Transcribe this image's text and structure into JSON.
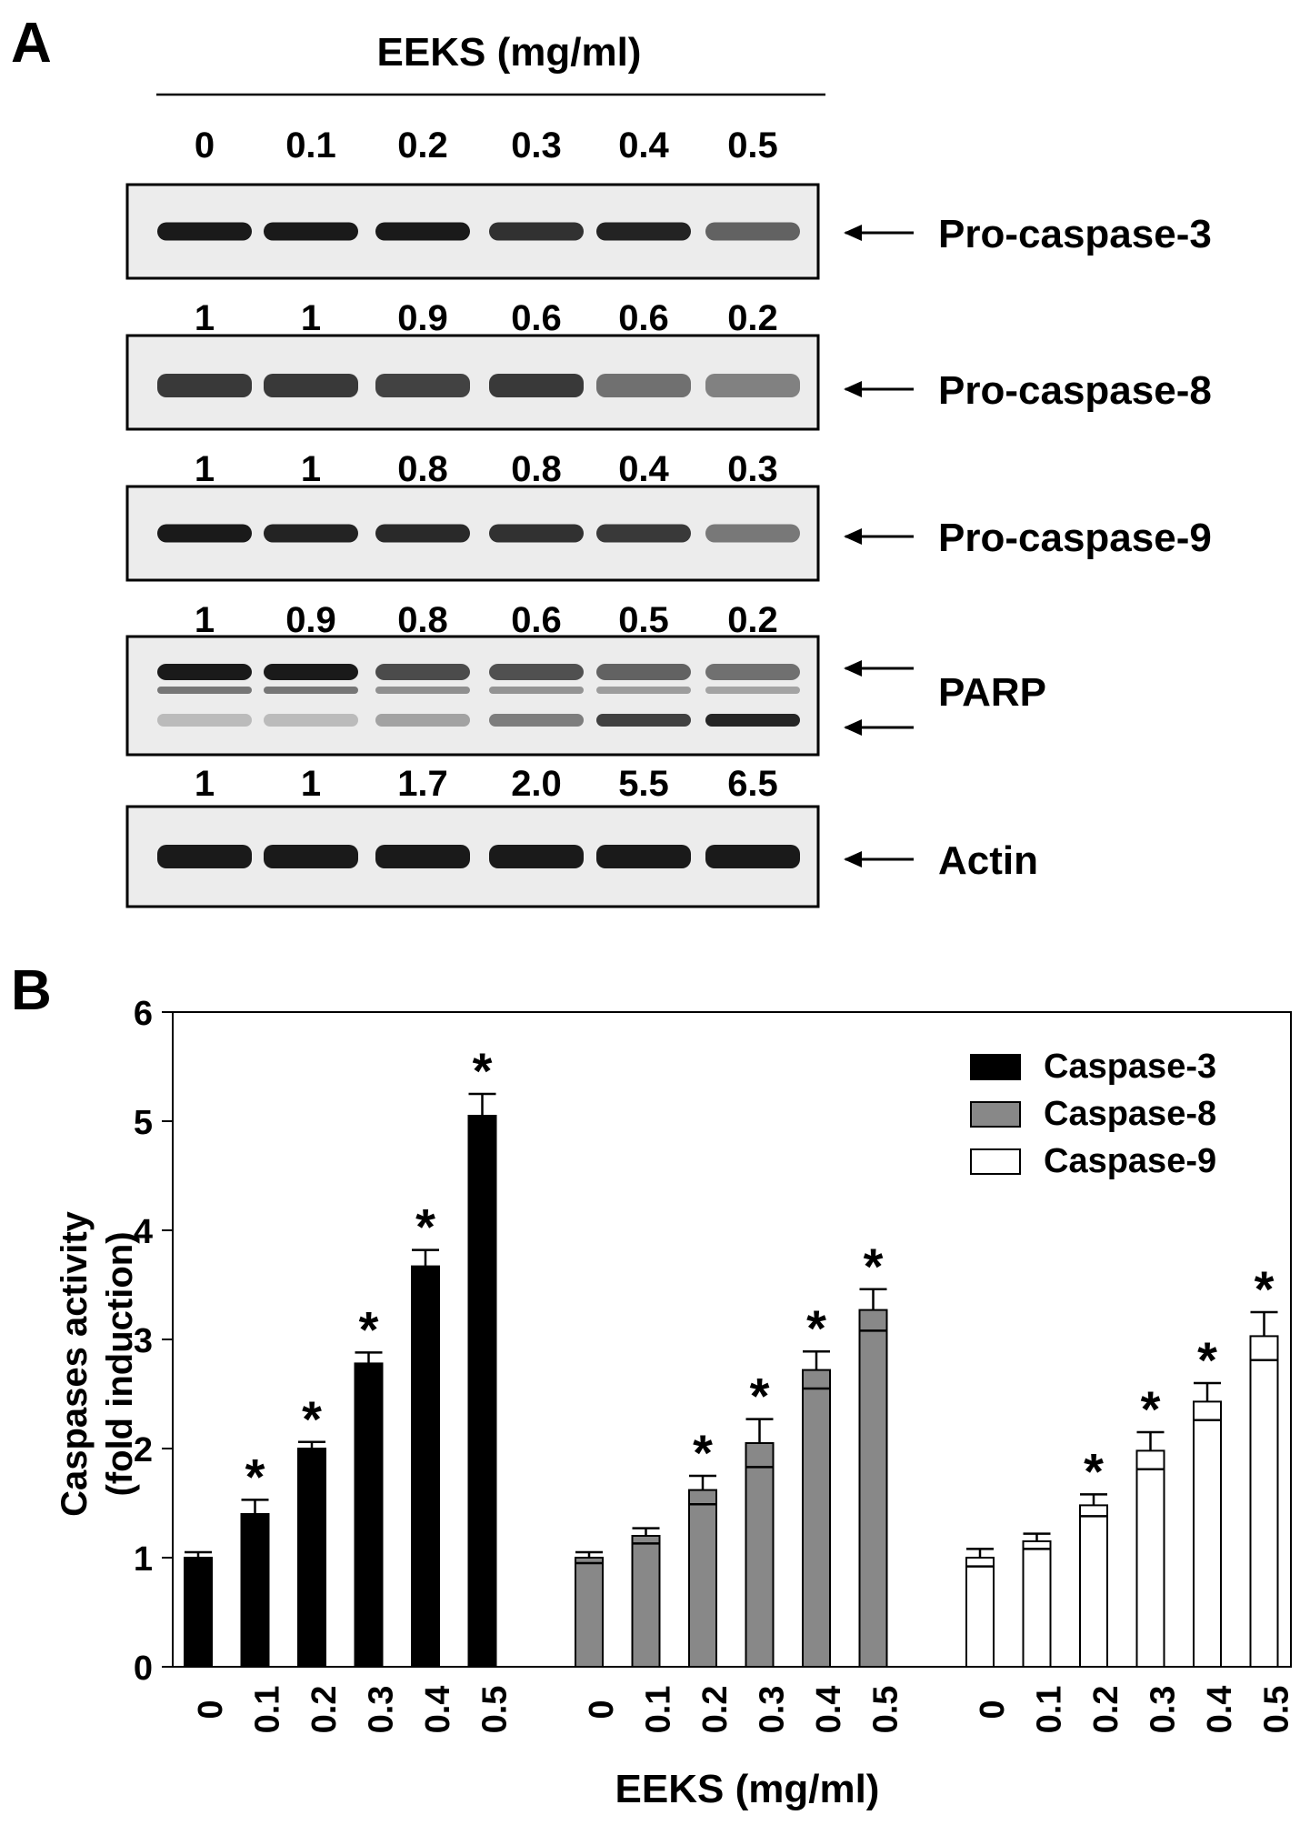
{
  "panel_a": {
    "label": "A",
    "header": "EEKS (mg/ml)",
    "doses": [
      "0",
      "0.1",
      "0.2",
      "0.3",
      "0.4",
      "0.5"
    ],
    "blots": [
      {
        "name": "Pro-caspase-3",
        "label": "Pro-caspase-3",
        "intensity": [
          1,
          1,
          1,
          0.85,
          0.95,
          0.55
        ],
        "quant": [
          "1",
          "1",
          "0.9",
          "0.6",
          "0.6",
          "0.2"
        ]
      },
      {
        "name": "Pro-caspase-8",
        "label": "Pro-caspase-8",
        "intensity": [
          0.8,
          0.8,
          0.75,
          0.8,
          0.45,
          0.35
        ],
        "quant": [
          "1",
          "1",
          "0.8",
          "0.8",
          "0.4",
          "0.3"
        ]
      },
      {
        "name": "Pro-caspase-9",
        "label": "Pro-caspase-9",
        "intensity": [
          1,
          0.95,
          0.9,
          0.85,
          0.8,
          0.4
        ],
        "quant": [
          "1",
          "0.9",
          "0.8",
          "0.6",
          "0.5",
          "0.2"
        ]
      },
      {
        "name": "PARP",
        "label": "PARP",
        "intensity": [
          1,
          1,
          0.7,
          0.65,
          0.55,
          0.45
        ],
        "cleaved": [
          0.15,
          0.15,
          0.3,
          0.5,
          0.85,
          1
        ],
        "quant": [
          "1",
          "1",
          "1.7",
          "2.0",
          "5.5",
          "6.5"
        ]
      },
      {
        "name": "Actin",
        "label": "Actin",
        "intensity": [
          1,
          1,
          1,
          1,
          1,
          1
        ],
        "quant": []
      }
    ]
  },
  "chart_data": {
    "type": "bar",
    "panel_label": "B",
    "ylabel_line1": "Caspases activity",
    "ylabel_line2": "(fold induction)",
    "xlabel": "EEKS (mg/ml)",
    "ylim": [
      0,
      6
    ],
    "yticks": [
      "0",
      "1",
      "2",
      "3",
      "4",
      "5",
      "6"
    ],
    "legend_position": "top-right",
    "categories": [
      "0",
      "0.1",
      "0.2",
      "0.3",
      "0.4",
      "0.5"
    ],
    "series": [
      {
        "name": "Caspase-3",
        "color": "#000000",
        "values": [
          1.0,
          1.4,
          2.0,
          2.78,
          3.67,
          5.05
        ],
        "errors": [
          0.05,
          0.13,
          0.06,
          0.1,
          0.15,
          0.2
        ],
        "significant": [
          false,
          true,
          true,
          true,
          true,
          true
        ]
      },
      {
        "name": "Caspase-8",
        "color": "#888888",
        "values": [
          1.0,
          1.2,
          1.62,
          2.05,
          2.72,
          3.27
        ],
        "errors": [
          0.05,
          0.07,
          0.13,
          0.22,
          0.17,
          0.19
        ],
        "significant": [
          false,
          false,
          true,
          true,
          true,
          true
        ]
      },
      {
        "name": "Caspase-9",
        "color": "#ffffff",
        "values": [
          1.0,
          1.15,
          1.48,
          1.98,
          2.43,
          3.03
        ],
        "errors": [
          0.08,
          0.07,
          0.1,
          0.17,
          0.17,
          0.22
        ],
        "significant": [
          false,
          false,
          true,
          true,
          true,
          true
        ]
      }
    ],
    "significance_marker": "*"
  }
}
